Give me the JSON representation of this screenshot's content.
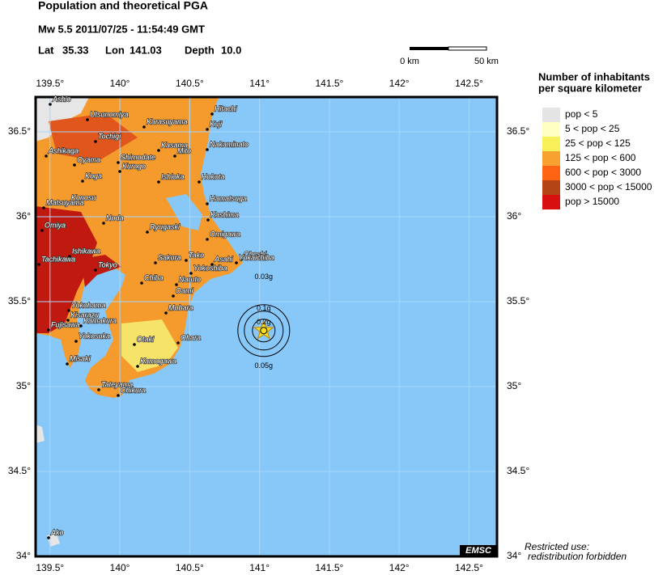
{
  "header": {
    "title": "Population and theoretical PGA",
    "event": "Mw 5.5  2011/07/25 - 11:54:49 GMT",
    "lat_label": "Lat",
    "lat": 35.33,
    "lon_label": "Lon",
    "lon": 141.03,
    "depth_label": "Depth",
    "depth": "10.0"
  },
  "scale_bar": {
    "start": "0 km",
    "end": "50 km"
  },
  "legend": {
    "title_lines": [
      "Number of inhabitants",
      "per square kilometer"
    ],
    "items": [
      {
        "label": "pop < 5",
        "color": "#e4e4e4"
      },
      {
        "label": "5 < pop < 25",
        "color": "#ffffc4"
      },
      {
        "label": "25 < pop < 125",
        "color": "#f8f058"
      },
      {
        "label": "125 < pop < 600",
        "color": "#f8a030"
      },
      {
        "label": "600 < pop < 3000",
        "color": "#ff6414"
      },
      {
        "label": "3000 < pop < 15000",
        "color": "#b44414"
      },
      {
        "label": "pop > 15000",
        "color": "#d81010"
      }
    ]
  },
  "map": {
    "xlim": [
      139.397,
      142.7
    ],
    "ylim": [
      34.0,
      36.705
    ],
    "sea_color": "#88c8f8",
    "xticks": [
      {
        "value": 139.5,
        "label": "139.5°"
      },
      {
        "value": 140,
        "label": "140°"
      },
      {
        "value": 140.5,
        "label": "140.5°"
      },
      {
        "value": 141,
        "label": "141°"
      },
      {
        "value": 141.5,
        "label": "141.5°"
      },
      {
        "value": 142,
        "label": "142°"
      },
      {
        "value": 142.5,
        "label": "142.5°"
      }
    ],
    "yticks": [
      {
        "value": 34,
        "label": "34°"
      },
      {
        "value": 34.5,
        "label": "34.5°"
      },
      {
        "value": 35,
        "label": "35°"
      },
      {
        "value": 35.5,
        "label": "35.5°"
      },
      {
        "value": 36,
        "label": "36°"
      },
      {
        "value": 36.5,
        "label": "36.5°"
      }
    ]
  },
  "cities": [
    "Ashio",
    "Karasuyama",
    "Hitachi",
    "Utsunomiya",
    "Kuji",
    "Tochigi",
    "Kasama",
    "Nakaminato",
    "Ashikaga",
    "Oyama",
    "Shimodate",
    "Mito",
    "Kurogo",
    "Koga",
    "Ishioka",
    "Hokota",
    "Konosu",
    "Matsuyama",
    "Hamatsuga",
    "Kashima",
    "Noda",
    "Ryugaski",
    "Omiya",
    "Omigawa",
    "Ishikawa",
    "Tachikawa",
    "Tako",
    "Sakura",
    "Asahi",
    "Choshi",
    "Yokaichiba",
    "Tokyo",
    "Yokoshiba",
    "Chiba",
    "Naruto",
    "Oami",
    "Yokohama",
    "Mobara",
    "Kisarazu",
    "Kamakura",
    "Fujisawa",
    "Yokosuka",
    "Ohara",
    "Otaki",
    "Misaki",
    "Kamogawa",
    "Tateyama",
    "Chikura",
    "Ako"
  ],
  "pga_labels": [
    "0.03g",
    "0.1g",
    "0.2g",
    "0.05g"
  ],
  "logo": "EMSC",
  "notice": [
    "Restricted use:",
    "redistribution forbidden"
  ]
}
